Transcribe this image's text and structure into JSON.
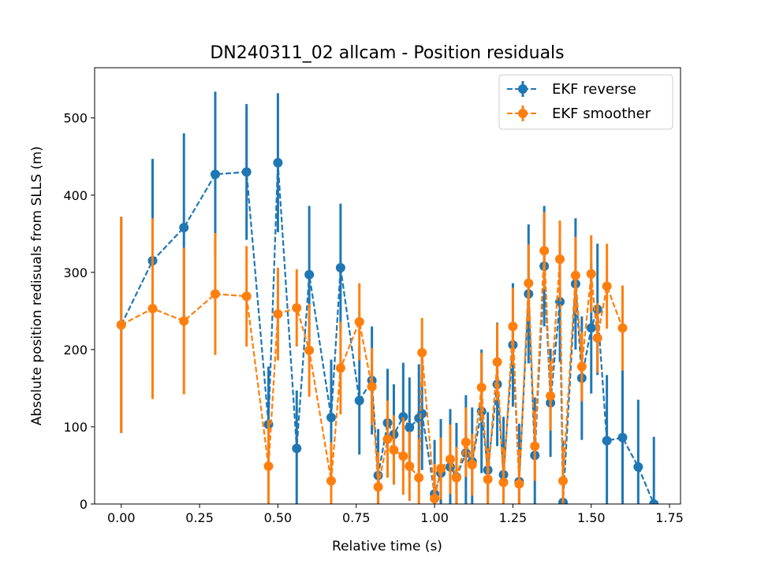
{
  "chart_data": {
    "type": "scatter",
    "title": "DN240311_02 allcam - Position residuals",
    "xlabel": "Relative time (s)",
    "ylabel": "Absolute position redisuals from SLLS (m)",
    "xlim": [
      -0.085,
      1.785
    ],
    "ylim": [
      0,
      565
    ],
    "xticks": [
      0.0,
      0.25,
      0.5,
      0.75,
      1.0,
      1.25,
      1.5,
      1.75
    ],
    "xtick_labels": [
      "0.00",
      "0.25",
      "0.50",
      "0.75",
      "1.00",
      "1.25",
      "1.50",
      "1.75"
    ],
    "yticks": [
      0,
      100,
      200,
      300,
      400,
      500
    ],
    "ytick_labels": [
      "0",
      "100",
      "200",
      "300",
      "400",
      "500"
    ],
    "grid": false,
    "legend_position": "top-right",
    "series": [
      {
        "name": "EKF reverse",
        "color": "#1f77b4",
        "linestyle": "dashed",
        "marker": "circle",
        "x": [
          0.0,
          0.1,
          0.2,
          0.3,
          0.4,
          0.47,
          0.5,
          0.56,
          0.6,
          0.67,
          0.7,
          0.76,
          0.8,
          0.82,
          0.85,
          0.87,
          0.9,
          0.92,
          0.95,
          0.96,
          1.0,
          1.02,
          1.05,
          1.07,
          1.1,
          1.12,
          1.15,
          1.17,
          1.2,
          1.22,
          1.25,
          1.27,
          1.3,
          1.32,
          1.35,
          1.37,
          1.4,
          1.41,
          1.45,
          1.47,
          1.5,
          1.52,
          1.55,
          1.6,
          1.65,
          1.7
        ],
        "y": [
          232,
          315,
          358,
          427,
          430,
          103,
          442,
          72,
          297,
          112,
          306,
          134,
          160,
          37,
          105,
          90,
          113,
          99,
          111,
          117,
          13,
          40,
          48,
          35,
          66,
          55,
          120,
          44,
          155,
          38,
          206,
          29,
          272,
          63,
          308,
          131,
          262,
          2,
          285,
          163,
          228,
          252,
          82,
          86,
          48,
          0
        ],
        "err": [
          140,
          132,
          122,
          107,
          88,
          75,
          90,
          75,
          89,
          75,
          83,
          70,
          70,
          60,
          70,
          65,
          70,
          65,
          70,
          73,
          70,
          70,
          75,
          70,
          75,
          70,
          80,
          75,
          80,
          75,
          80,
          75,
          90,
          75,
          78,
          70,
          78,
          80,
          85,
          80,
          85,
          85,
          85,
          87,
          87,
          87
        ]
      },
      {
        "name": "EKF smoother",
        "color": "#ff7f0e",
        "linestyle": "dashed",
        "marker": "circle",
        "x": [
          0.0,
          0.1,
          0.2,
          0.3,
          0.4,
          0.47,
          0.5,
          0.56,
          0.6,
          0.67,
          0.7,
          0.76,
          0.8,
          0.82,
          0.85,
          0.87,
          0.9,
          0.92,
          0.95,
          0.96,
          1.0,
          1.02,
          1.05,
          1.07,
          1.1,
          1.12,
          1.15,
          1.17,
          1.2,
          1.22,
          1.25,
          1.27,
          1.3,
          1.32,
          1.35,
          1.37,
          1.4,
          1.41,
          1.45,
          1.47,
          1.5,
          1.52,
          1.55,
          1.6
        ],
        "y": [
          232,
          253,
          237,
          272,
          269,
          49,
          246,
          254,
          199,
          30,
          176,
          236,
          152,
          22,
          84,
          70,
          62,
          49,
          34,
          196,
          7,
          46,
          58,
          34,
          80,
          51,
          151,
          32,
          184,
          28,
          230,
          26,
          286,
          75,
          328,
          140,
          317,
          30,
          296,
          178,
          298,
          215,
          282,
          228
        ],
        "err": [
          140,
          117,
          95,
          79,
          65,
          60,
          60,
          50,
          60,
          50,
          60,
          50,
          50,
          45,
          50,
          45,
          50,
          45,
          50,
          45,
          45,
          40,
          45,
          40,
          45,
          40,
          45,
          40,
          50,
          45,
          50,
          45,
          50,
          45,
          50,
          45,
          50,
          45,
          50,
          45,
          50,
          45,
          55,
          55
        ]
      }
    ]
  }
}
